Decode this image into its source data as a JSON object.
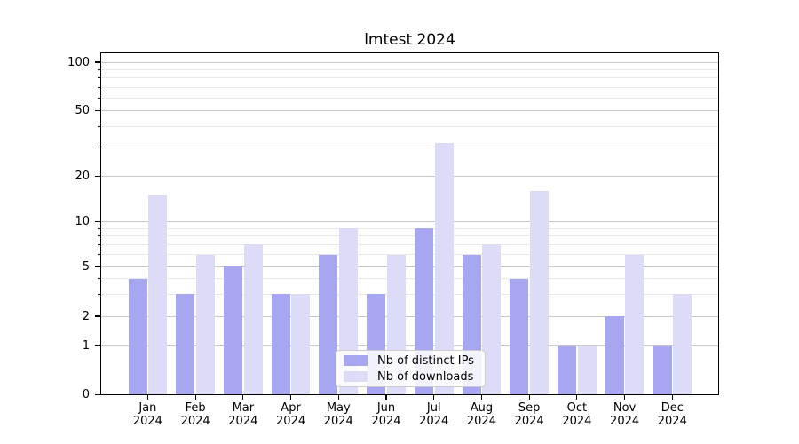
{
  "title": "lmtest 2024",
  "chart_data": {
    "type": "bar",
    "title": "lmtest 2024",
    "categories": [
      "Jan 2024",
      "Feb 2024",
      "Mar 2024",
      "Apr 2024",
      "May 2024",
      "Jun 2024",
      "Jul 2024",
      "Aug 2024",
      "Sep 2024",
      "Oct 2024",
      "Nov 2024",
      "Dec 2024"
    ],
    "series": [
      {
        "name": "Nb of distinct IPs",
        "color": "#a6a6f1",
        "values": [
          4,
          3,
          5,
          3,
          6,
          3,
          9,
          6,
          4,
          1,
          2,
          1
        ]
      },
      {
        "name": "Nb of downloads",
        "color": "#dcdcf8",
        "values": [
          15,
          6,
          7,
          3,
          9,
          6,
          32,
          7,
          16,
          1,
          6,
          3
        ]
      }
    ],
    "xlabel": "",
    "ylabel": "",
    "y_ticks": [
      0,
      1,
      2,
      5,
      10,
      20,
      50,
      100
    ],
    "y_minor_gridlines": [
      3,
      4,
      6,
      7,
      8,
      9,
      30,
      40,
      60,
      70,
      80,
      90
    ],
    "ylim": [
      0,
      115
    ],
    "yscale": "quasi-log (0 baseline, log spacing above 1)",
    "grid": true,
    "legend_position": "lower center"
  },
  "colors": {
    "background": "#ffffff",
    "ips_bar": "#a6a6f1",
    "downloads_bar": "#dcdcf8",
    "grid_major": "#c6c6c6",
    "grid_minor": "#e9e9e9",
    "axis": "#000000",
    "legend_background": "rgba(255,255,255,0.85)",
    "legend_border": "#cccccc",
    "text": "#000000"
  },
  "legend": {
    "items": [
      {
        "label": "Nb of distinct IPs"
      },
      {
        "label": "Nb of downloads"
      }
    ]
  }
}
